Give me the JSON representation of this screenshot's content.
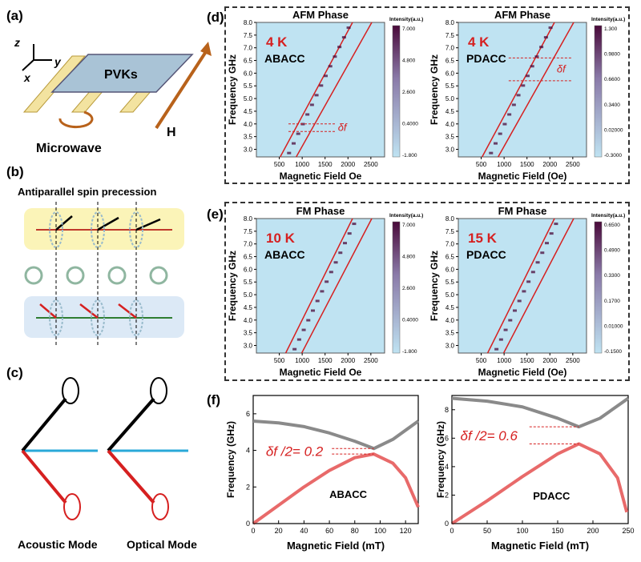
{
  "panels": {
    "a": {
      "label": "(a)",
      "axis_z": "z",
      "axis_x": "x",
      "axis_y": "y",
      "material": "PVKs",
      "field": "H",
      "source": "Microwave"
    },
    "b": {
      "label": "(b)",
      "title": "Antiparallel spin precession"
    },
    "c": {
      "label": "(c)",
      "mode_left": "Acoustic Mode",
      "mode_right": "Optical Mode"
    },
    "d": {
      "label": "(d)"
    },
    "e": {
      "label": "(e)"
    },
    "f": {
      "label": "(f)"
    }
  },
  "colors": {
    "accent_red": "#d62020",
    "heat_low": "#bfe3f2",
    "heat_high": "#4a0a3a",
    "curve_gray": "#8a8a8a",
    "curve_pink": "#e86a6a"
  },
  "chart_data": [
    {
      "id": "d-left",
      "type": "heatmap",
      "title": "AFM Phase",
      "temp": "4 K",
      "sample": "ABACC",
      "xlabel": "Magnetic Field Oe",
      "ylabel": "Frequency GHz",
      "xlim": [
        0,
        2800
      ],
      "ylim": [
        2.7,
        8.0
      ],
      "xticks": [
        "500",
        "1000",
        "1500",
        "2000",
        "2500"
      ],
      "yticks": [
        "3.0",
        "3.5",
        "4.0",
        "4.5",
        "5.0",
        "5.5",
        "6.0",
        "6.5",
        "7.0",
        "7.5",
        "8.0"
      ],
      "colorbar_label": "Intensity(a.u.)",
      "colorbar_ticks": [
        "7.000",
        "4.800",
        "2.600",
        "0.4000",
        "-1.800"
      ],
      "annotation": "δf"
    },
    {
      "id": "d-right",
      "type": "heatmap",
      "title": "AFM Phase",
      "temp": "4 K",
      "sample": "PDACC",
      "xlabel": "Magnetic Field (Oe)",
      "ylabel": "Frequency GHz",
      "xlim": [
        0,
        2800
      ],
      "ylim": [
        2.7,
        8.0
      ],
      "xticks": [
        "500",
        "1000",
        "1500",
        "2000",
        "2500"
      ],
      "yticks": [
        "3.0",
        "3.5",
        "4.0",
        "4.5",
        "5.0",
        "5.5",
        "6.0",
        "6.5",
        "7.0",
        "7.5",
        "8.0"
      ],
      "colorbar_label": "Intensity(a.u.)",
      "colorbar_ticks": [
        "1.300",
        "0.9800",
        "0.6600",
        "0.3400",
        "0.02000",
        "-0.3000"
      ],
      "annotation": "δf"
    },
    {
      "id": "e-left",
      "type": "heatmap",
      "title": "FM Phase",
      "temp": "10 K",
      "sample": "ABACC",
      "xlabel": "Magnetic Field Oe",
      "ylabel": "Frequency GHz",
      "xlim": [
        0,
        2800
      ],
      "ylim": [
        2.7,
        8.0
      ],
      "xticks": [
        "500",
        "1000",
        "1500",
        "2000",
        "2500"
      ],
      "yticks": [
        "3.0",
        "3.5",
        "4.0",
        "4.5",
        "5.0",
        "5.5",
        "6.0",
        "6.5",
        "7.0",
        "7.5",
        "8.0"
      ],
      "colorbar_label": "Intensity(a.u.)",
      "colorbar_ticks": [
        "7.000",
        "4.800",
        "2.600",
        "0.4000",
        "-1.800"
      ]
    },
    {
      "id": "e-right",
      "type": "heatmap",
      "title": "FM Phase",
      "temp": "15 K",
      "sample": "PDACC",
      "xlabel": "Magnetic Field (Oe)",
      "ylabel": "Frequency GHz",
      "xlim": [
        0,
        2800
      ],
      "ylim": [
        2.7,
        8.0
      ],
      "xticks": [
        "500",
        "1000",
        "1500",
        "2000",
        "2500"
      ],
      "yticks": [
        "3.0",
        "3.5",
        "4.0",
        "4.5",
        "5.0",
        "5.5",
        "6.0",
        "6.5",
        "7.0",
        "7.5",
        "8.0"
      ],
      "colorbar_label": "Intensity(a.u.)",
      "colorbar_ticks": [
        "0.6500",
        "0.4900",
        "0.3300",
        "0.1700",
        "0.01000",
        "-0.1500"
      ]
    },
    {
      "id": "f-left",
      "type": "line",
      "sample": "ABACC",
      "xlabel": "Magnetic Field (mT)",
      "ylabel": "Frequency (GHz)",
      "xlim": [
        0,
        130
      ],
      "ylim": [
        0,
        7
      ],
      "xticks": [
        0,
        20,
        40,
        60,
        80,
        100,
        120
      ],
      "yticks": [
        0,
        2,
        4,
        6
      ],
      "annotation": "δf /2= 0.2",
      "series": [
        {
          "name": "upper",
          "x": [
            0,
            20,
            40,
            60,
            80,
            95,
            110,
            130
          ],
          "y": [
            5.6,
            5.5,
            5.3,
            4.95,
            4.5,
            4.1,
            4.6,
            5.6
          ]
        },
        {
          "name": "lower",
          "x": [
            0,
            20,
            40,
            60,
            80,
            95,
            110,
            120,
            130
          ],
          "y": [
            0,
            1.0,
            2.0,
            2.9,
            3.6,
            3.8,
            3.3,
            2.5,
            0.9
          ]
        }
      ]
    },
    {
      "id": "f-right",
      "type": "line",
      "sample": "PDACC",
      "xlabel": "Magnetic Field (mT)",
      "ylabel": "Frequency (GHz)",
      "xlim": [
        0,
        250
      ],
      "ylim": [
        0,
        9
      ],
      "xticks": [
        0,
        50,
        100,
        150,
        200,
        250
      ],
      "yticks": [
        0,
        2,
        4,
        6,
        8
      ],
      "annotation": "δf /2= 0.6",
      "series": [
        {
          "name": "upper",
          "x": [
            0,
            50,
            100,
            150,
            180,
            210,
            250
          ],
          "y": [
            8.8,
            8.6,
            8.2,
            7.4,
            6.8,
            7.4,
            8.8
          ]
        },
        {
          "name": "lower",
          "x": [
            0,
            50,
            100,
            150,
            180,
            210,
            235,
            248
          ],
          "y": [
            0,
            1.6,
            3.3,
            4.9,
            5.6,
            4.9,
            3.2,
            0.8
          ]
        }
      ]
    }
  ]
}
